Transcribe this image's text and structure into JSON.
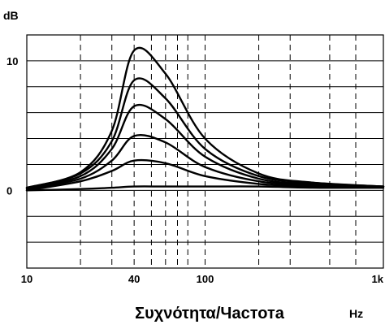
{
  "chart_data": {
    "type": "line",
    "title": "",
    "xlabel": "Συχνότητα/Частота",
    "xunit": "Hz",
    "ylabel": "dB",
    "x_scale": "log",
    "xlim": [
      10,
      1000
    ],
    "ylim": [
      -6,
      12
    ],
    "grid": true,
    "x_ticks": [
      {
        "value": 10,
        "label": "10"
      },
      {
        "value": 40,
        "label": "40"
      },
      {
        "value": 100,
        "label": "100"
      },
      {
        "value": 1000,
        "label": "1k"
      }
    ],
    "y_ticks": [
      {
        "value": 10,
        "label": "10"
      },
      {
        "value": 0,
        "label": "0"
      }
    ],
    "x_gridlines": [
      20,
      30,
      40,
      50,
      60,
      70,
      80,
      100,
      200,
      300,
      500,
      700
    ],
    "y_gridlines": [
      -6,
      -4,
      -2,
      0,
      2,
      4,
      6,
      8,
      10,
      12
    ],
    "series": [
      {
        "x": [
          10,
          20,
          30,
          40,
          60,
          100,
          200,
          400,
          1000
        ],
        "y": [
          0.2,
          1.4,
          4.6,
          10.8,
          9.0,
          4.0,
          1.3,
          0.6,
          0.3
        ]
      },
      {
        "x": [
          10,
          20,
          30,
          40,
          60,
          100,
          200,
          400,
          1000
        ],
        "y": [
          0.2,
          1.3,
          3.8,
          8.5,
          7.1,
          3.2,
          1.1,
          0.6,
          0.3
        ]
      },
      {
        "x": [
          10,
          20,
          30,
          40,
          60,
          100,
          200,
          400,
          1000
        ],
        "y": [
          0.2,
          1.1,
          3.2,
          6.5,
          5.5,
          2.6,
          0.9,
          0.5,
          0.3
        ]
      },
      {
        "x": [
          10,
          20,
          30,
          40,
          60,
          100,
          200,
          400,
          1000
        ],
        "y": [
          0.1,
          0.9,
          2.3,
          4.2,
          3.7,
          1.8,
          0.7,
          0.4,
          0.3
        ]
      },
      {
        "x": [
          10,
          20,
          30,
          40,
          60,
          100,
          200,
          400,
          1000
        ],
        "y": [
          0.0,
          0.7,
          1.5,
          2.3,
          2.1,
          1.1,
          0.5,
          0.3,
          0.2
        ]
      },
      {
        "x": [
          10,
          20,
          30,
          40,
          60,
          100,
          200,
          400,
          1000
        ],
        "y": [
          0.0,
          0.1,
          0.2,
          0.3,
          0.3,
          0.3,
          0.3,
          0.2,
          0.2
        ]
      }
    ]
  }
}
